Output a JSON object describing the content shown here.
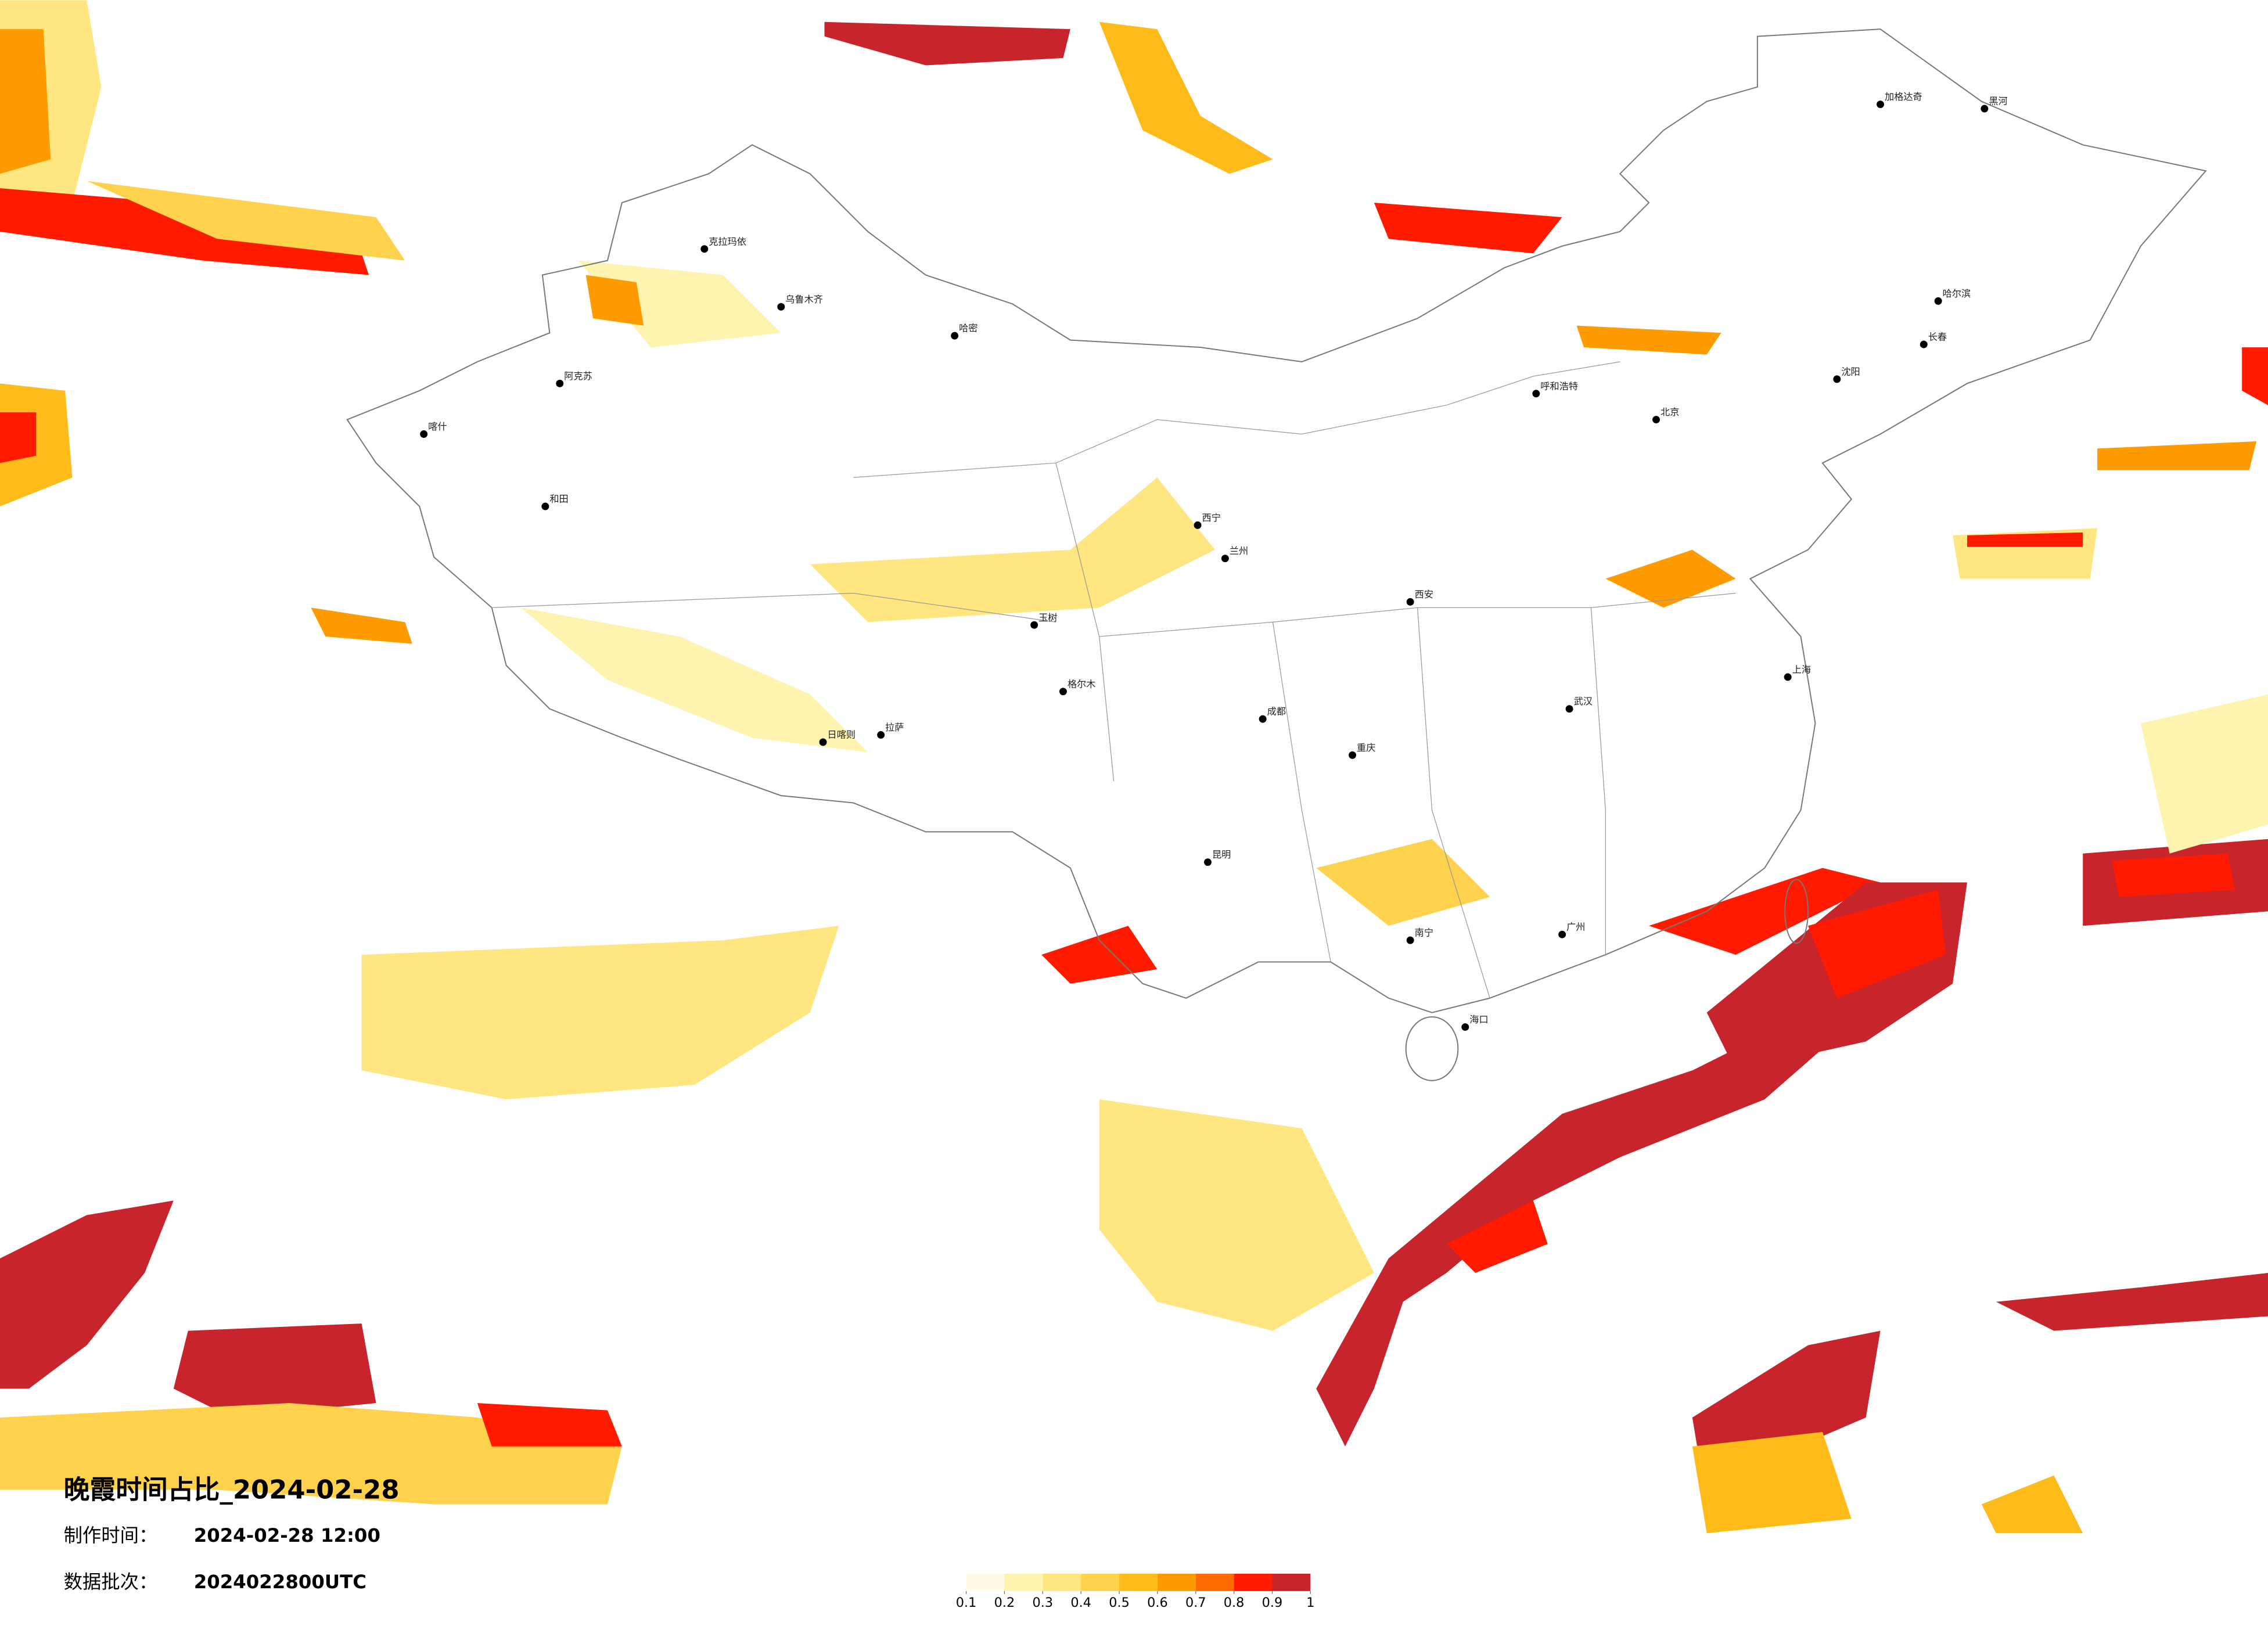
{
  "title": "晚霞时间占比_2024-02-28",
  "make_time_label": "制作时间：",
  "make_time": "2024-02-28 12:00",
  "batch_label": "数据批次：",
  "batch": "2024022800UTC",
  "legend": {
    "ticks": [
      0.1,
      0.2,
      0.3,
      0.4,
      0.5,
      0.6,
      0.7,
      0.8,
      0.9,
      1
    ],
    "colors": [
      "#fffbe6",
      "#fff3b0",
      "#ffe680",
      "#ffd24d",
      "#ffbb1a",
      "#ff9a00",
      "#ff6a00",
      "#ff1a00",
      "#c8242c"
    ]
  },
  "cities": [
    "克拉玛依",
    "乌鲁木齐",
    "阿克苏",
    "和田",
    "喀什",
    "哈密",
    "拉萨",
    "日喀则",
    "西宁",
    "兰州",
    "成都",
    "重庆",
    "昆明",
    "南宁",
    "广州",
    "北京",
    "上海",
    "武汉",
    "西安",
    "哈尔滨",
    "长春",
    "沈阳",
    "呼和浩特",
    "海口",
    "加格达奇",
    "黑河",
    "格尔木",
    "玉树"
  ]
}
